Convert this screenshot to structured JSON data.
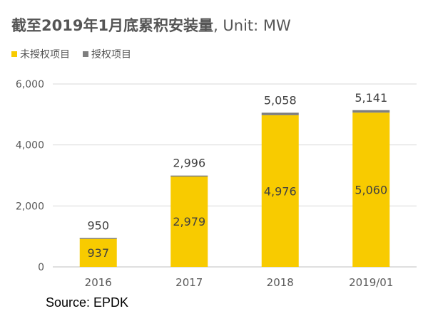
{
  "title": {
    "main": "截至2019年1月底累积安装量",
    "unit": ", Unit: MW"
  },
  "source": "Source: EPDK",
  "colors": {
    "unlicensed": "#F8CB00",
    "licensed": "#7F7F7F",
    "axis_text": "#595959",
    "grid": "#D9D9D9"
  },
  "chart_data": {
    "type": "bar",
    "stacked": true,
    "categories": [
      "2016",
      "2017",
      "2018",
      "2019/01"
    ],
    "series": [
      {
        "name": "未授权项目",
        "values": [
          937,
          2979,
          4976,
          5060
        ]
      },
      {
        "name": "授权项目",
        "values": [
          13,
          17,
          82,
          81
        ]
      }
    ],
    "totals": [
      950,
      2996,
      5058,
      5141
    ],
    "ylim": [
      0,
      6000
    ],
    "yticks": [
      "0",
      "2,000",
      "4,000",
      "6,000"
    ],
    "ytick_values": [
      0,
      2000,
      4000,
      6000
    ],
    "grid": true,
    "legend_position": "top-left",
    "xlabel": "",
    "ylabel": ""
  }
}
